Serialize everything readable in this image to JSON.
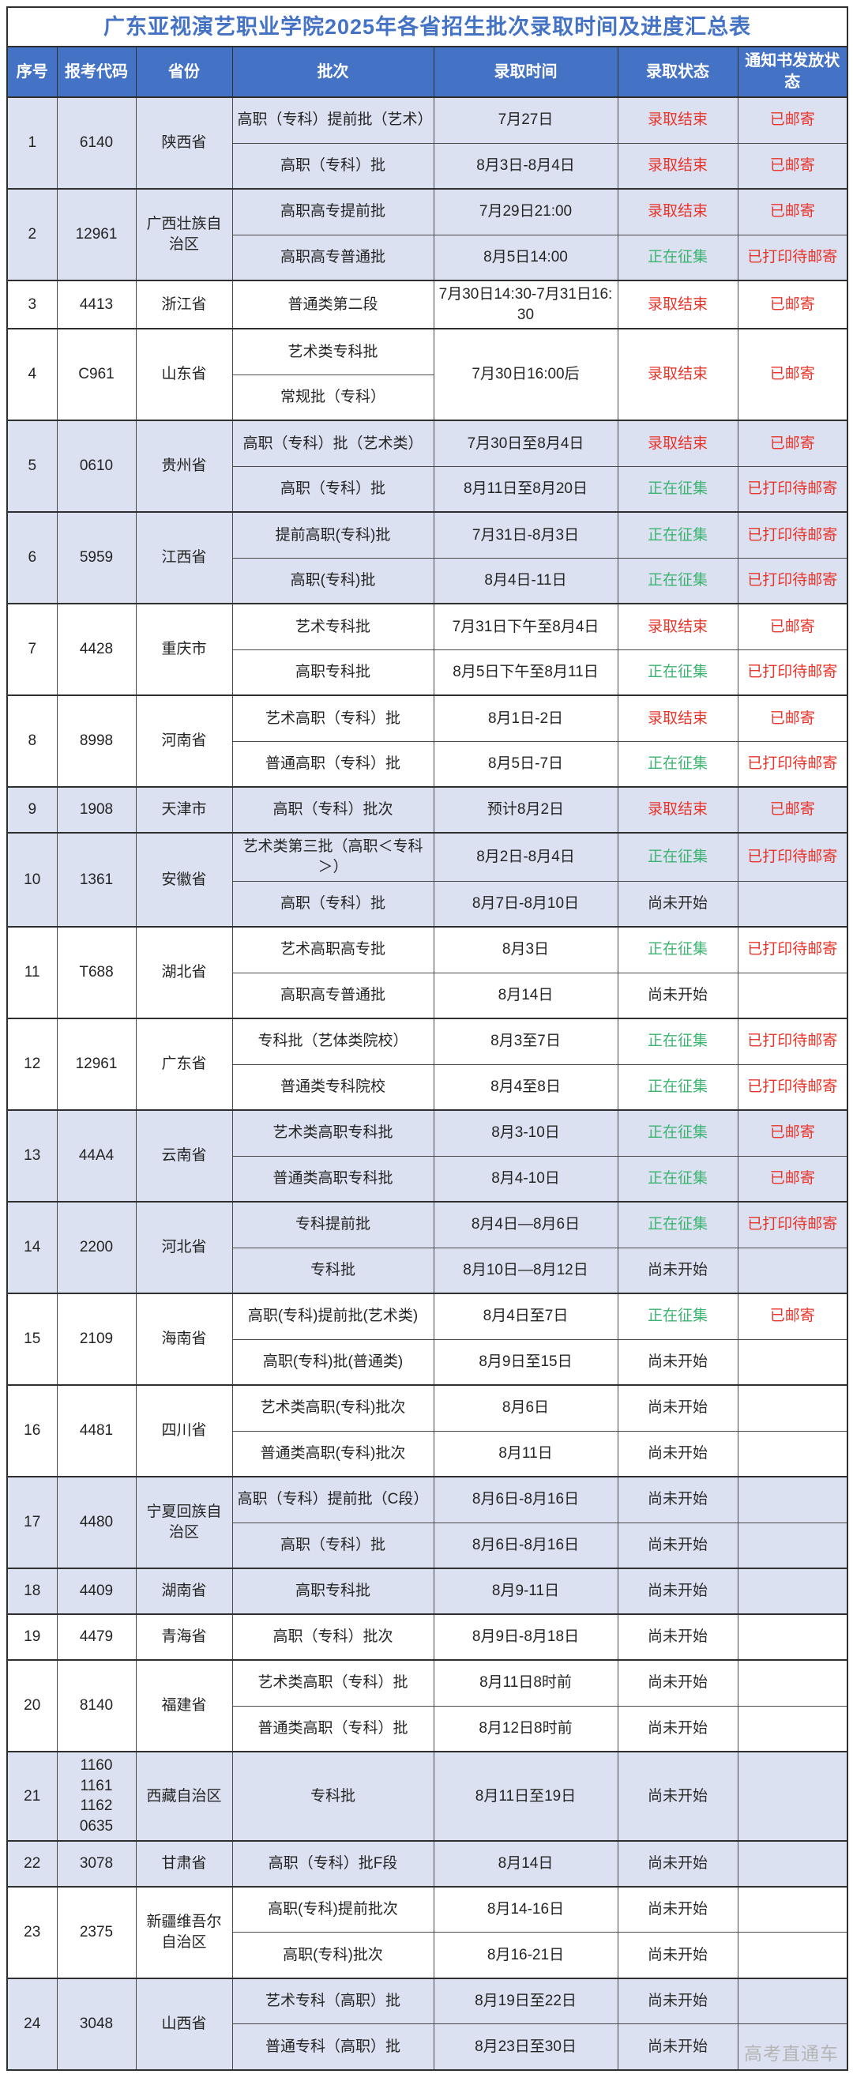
{
  "title": "广东亚视演艺职业学院2025年各省招生批次录取时间及进度汇总表",
  "watermark": "高考直通车",
  "columns": [
    "序号",
    "报考代码",
    "省份",
    "批次",
    "录取时间",
    "录取状态",
    "通知书发放状态"
  ],
  "colors": {
    "header_bg": "#4472c4",
    "header_text": "#ffffff",
    "title_text": "#4472c4",
    "shaded_row_bg": "#dbe1f1",
    "status_finished_red": "#e8352b",
    "status_collecting_green": "#3cb371",
    "status_notstarted_dark": "#2a2a2a",
    "border": "#2f2f2f"
  },
  "status_legend": {
    "finished": "录取结束",
    "collecting": "正在征集",
    "not_started": "尚未开始",
    "mailed": "已邮寄",
    "printed_waiting": "已打印待邮寄"
  },
  "groups": [
    {
      "no": "1",
      "code": [
        "6140"
      ],
      "province": "陕西省",
      "shaded": true,
      "batches": [
        {
          "batch": "高职（专科）提前批（艺术）",
          "time": "7月27日",
          "status": "录取结束",
          "status_color": "red",
          "notice": "已邮寄",
          "notice_color": "red"
        },
        {
          "batch": "高职（专科）批",
          "time": "8月3日-8月4日",
          "status": "录取结束",
          "status_color": "red",
          "notice": "已邮寄",
          "notice_color": "red"
        }
      ]
    },
    {
      "no": "2",
      "code": [
        "12961"
      ],
      "province": "广西壮族自治区",
      "shaded": true,
      "batches": [
        {
          "batch": "高职高专提前批",
          "time": "7月29日21:00",
          "status": "录取结束",
          "status_color": "red",
          "notice": "已邮寄",
          "notice_color": "red"
        },
        {
          "batch": "高职高专普通批",
          "time": "8月5日14:00",
          "status": "正在征集",
          "status_color": "green",
          "notice": "已打印待邮寄",
          "notice_color": "red"
        }
      ]
    },
    {
      "no": "3",
      "code": [
        "4413"
      ],
      "province": "浙江省",
      "shaded": false,
      "batches": [
        {
          "batch": "普通类第二段",
          "time": "7月30日14:30-7月31日16:30",
          "status": "录取结束",
          "status_color": "red",
          "notice": "已邮寄",
          "notice_color": "red"
        }
      ]
    },
    {
      "no": "4",
      "code": [
        "C961"
      ],
      "province": "山东省",
      "shaded": false,
      "merged": {
        "time": "7月30日16:00后",
        "status": "录取结束",
        "status_color": "red",
        "notice": "已邮寄",
        "notice_color": "red"
      },
      "batches": [
        {
          "batch": "艺术类专科批"
        },
        {
          "batch": "常规批（专科）"
        }
      ]
    },
    {
      "no": "5",
      "code": [
        "0610"
      ],
      "province": "贵州省",
      "shaded": true,
      "batches": [
        {
          "batch": "高职（专科）批（艺术类）",
          "time": "7月30日至8月4日",
          "status": "录取结束",
          "status_color": "red",
          "notice": "已邮寄",
          "notice_color": "red"
        },
        {
          "batch": "高职（专科）批",
          "time": "8月11日至8月20日",
          "status": "正在征集",
          "status_color": "green",
          "notice": "已打印待邮寄",
          "notice_color": "red"
        }
      ]
    },
    {
      "no": "6",
      "code": [
        "5959"
      ],
      "province": "江西省",
      "shaded": true,
      "batches": [
        {
          "batch": "提前高职(专科)批",
          "time": "7月31日-8月3日",
          "status": "正在征集",
          "status_color": "green",
          "notice": "已打印待邮寄",
          "notice_color": "red"
        },
        {
          "batch": "高职(专科)批",
          "time": "8月4日-11日",
          "status": "正在征集",
          "status_color": "green",
          "notice": "已打印待邮寄",
          "notice_color": "red"
        }
      ]
    },
    {
      "no": "7",
      "code": [
        "4428"
      ],
      "province": "重庆市",
      "shaded": false,
      "batches": [
        {
          "batch": "艺术专科批",
          "time": "7月31日下午至8月4日",
          "status": "录取结束",
          "status_color": "red",
          "notice": "已邮寄",
          "notice_color": "red"
        },
        {
          "batch": "高职专科批",
          "time": "8月5日下午至8月11日",
          "status": "正在征集",
          "status_color": "green",
          "notice": "已打印待邮寄",
          "notice_color": "red"
        }
      ]
    },
    {
      "no": "8",
      "code": [
        "8998"
      ],
      "province": "河南省",
      "shaded": false,
      "batches": [
        {
          "batch": "艺术高职（专科）批",
          "time": "8月1日-2日",
          "status": "录取结束",
          "status_color": "red",
          "notice": "已邮寄",
          "notice_color": "red"
        },
        {
          "batch": "普通高职（专科）批",
          "time": "8月5日-7日",
          "status": "正在征集",
          "status_color": "green",
          "notice": "已打印待邮寄",
          "notice_color": "red"
        }
      ]
    },
    {
      "no": "9",
      "code": [
        "1908"
      ],
      "province": "天津市",
      "shaded": true,
      "batches": [
        {
          "batch": "高职（专科）批次",
          "time": "预计8月2日",
          "status": "录取结束",
          "status_color": "red",
          "notice": "已邮寄",
          "notice_color": "red"
        }
      ]
    },
    {
      "no": "10",
      "code": [
        "1361"
      ],
      "province": "安徽省",
      "shaded": true,
      "batches": [
        {
          "batch": "艺术类第三批（高职＜专科＞）",
          "time": "8月2日-8月4日",
          "status": "正在征集",
          "status_color": "green",
          "notice": "已打印待邮寄",
          "notice_color": "red"
        },
        {
          "batch": "高职（专科）批",
          "time": "8月7日-8月10日",
          "status": "尚未开始",
          "status_color": "dark",
          "notice": "",
          "notice_color": ""
        }
      ]
    },
    {
      "no": "11",
      "code": [
        "T688"
      ],
      "province": "湖北省",
      "shaded": false,
      "batches": [
        {
          "batch": "艺术高职高专批",
          "time": "8月3日",
          "status": "正在征集",
          "status_color": "green",
          "notice": "已打印待邮寄",
          "notice_color": "red"
        },
        {
          "batch": "高职高专普通批",
          "time": "8月14日",
          "status": "尚未开始",
          "status_color": "dark",
          "notice": "",
          "notice_color": ""
        }
      ]
    },
    {
      "no": "12",
      "code": [
        "12961"
      ],
      "province": "广东省",
      "shaded": false,
      "batches": [
        {
          "batch": "专科批（艺体类院校）",
          "time": "8月3至7日",
          "status": "正在征集",
          "status_color": "green",
          "notice": "已打印待邮寄",
          "notice_color": "red"
        },
        {
          "batch": "普通类专科院校",
          "time": "8月4至8日",
          "status": "正在征集",
          "status_color": "green",
          "notice": "已打印待邮寄",
          "notice_color": "red"
        }
      ]
    },
    {
      "no": "13",
      "code": [
        "44A4"
      ],
      "province": "云南省",
      "shaded": true,
      "batches": [
        {
          "batch": "艺术类高职专科批",
          "time": "8月3-10日",
          "status": "正在征集",
          "status_color": "green",
          "notice": "已邮寄",
          "notice_color": "red"
        },
        {
          "batch": "普通类高职专科批",
          "time": "8月4-10日",
          "status": "正在征集",
          "status_color": "green",
          "notice": "已邮寄",
          "notice_color": "red"
        }
      ]
    },
    {
      "no": "14",
      "code": [
        "2200"
      ],
      "province": "河北省",
      "shaded": true,
      "batches": [
        {
          "batch": "专科提前批",
          "time": "8月4日—8月6日",
          "status": "正在征集",
          "status_color": "green",
          "notice": "已打印待邮寄",
          "notice_color": "red"
        },
        {
          "batch": "专科批",
          "time": "8月10日—8月12日",
          "status": "尚未开始",
          "status_color": "dark",
          "notice": "",
          "notice_color": ""
        }
      ]
    },
    {
      "no": "15",
      "code": [
        "2109"
      ],
      "province": "海南省",
      "shaded": false,
      "batches": [
        {
          "batch": "高职(专科)提前批(艺术类)",
          "time": "8月4日至7日",
          "status": "正在征集",
          "status_color": "green",
          "notice": "已邮寄",
          "notice_color": "red"
        },
        {
          "batch": "高职(专科)批(普通类)",
          "time": "8月9日至15日",
          "status": "尚未开始",
          "status_color": "dark",
          "notice": "",
          "notice_color": ""
        }
      ]
    },
    {
      "no": "16",
      "code": [
        "4481"
      ],
      "province": "四川省",
      "shaded": false,
      "batches": [
        {
          "batch": "艺术类高职(专科)批次",
          "time": "8月6日",
          "status": "尚未开始",
          "status_color": "dark",
          "notice": "",
          "notice_color": ""
        },
        {
          "batch": "普通类高职(专科)批次",
          "time": "8月11日",
          "status": "尚未开始",
          "status_color": "dark",
          "notice": "",
          "notice_color": ""
        }
      ]
    },
    {
      "no": "17",
      "code": [
        "4480"
      ],
      "province": "宁夏回族自治区",
      "shaded": true,
      "batches": [
        {
          "batch": "高职（专科）提前批（C段）",
          "time": "8月6日-8月16日",
          "status": "尚未开始",
          "status_color": "dark",
          "notice": "",
          "notice_color": ""
        },
        {
          "batch": "高职（专科）批",
          "time": "8月6日-8月16日",
          "status": "尚未开始",
          "status_color": "dark",
          "notice": "",
          "notice_color": ""
        }
      ]
    },
    {
      "no": "18",
      "code": [
        "4409"
      ],
      "province": "湖南省",
      "shaded": true,
      "batches": [
        {
          "batch": "高职专科批",
          "time": "8月9-11日",
          "status": "尚未开始",
          "status_color": "dark",
          "notice": "",
          "notice_color": ""
        }
      ]
    },
    {
      "no": "19",
      "code": [
        "4479"
      ],
      "province": "青海省",
      "shaded": false,
      "batches": [
        {
          "batch": "高职（专科）批次",
          "time": "8月9日-8月18日",
          "status": "尚未开始",
          "status_color": "dark",
          "notice": "",
          "notice_color": ""
        }
      ]
    },
    {
      "no": "20",
      "code": [
        "8140"
      ],
      "province": "福建省",
      "shaded": false,
      "batches": [
        {
          "batch": "艺术类高职（专科）批",
          "time": "8月11日8时前",
          "status": "尚未开始",
          "status_color": "dark",
          "notice": "",
          "notice_color": ""
        },
        {
          "batch": "普通类高职（专科）批",
          "time": "8月12日8时前",
          "status": "尚未开始",
          "status_color": "dark",
          "notice": "",
          "notice_color": ""
        }
      ]
    },
    {
      "no": "21",
      "code": [
        "1160",
        "1161",
        "1162",
        "0635"
      ],
      "province": "西藏自治区",
      "shaded": true,
      "batches": [
        {
          "batch": "专科批",
          "time": "8月11日至19日",
          "status": "尚未开始",
          "status_color": "dark",
          "notice": "",
          "notice_color": ""
        }
      ]
    },
    {
      "no": "22",
      "code": [
        "3078"
      ],
      "province": "甘肃省",
      "shaded": true,
      "batches": [
        {
          "batch": "高职（专科）批F段",
          "time": "8月14日",
          "status": "尚未开始",
          "status_color": "dark",
          "notice": "",
          "notice_color": ""
        }
      ]
    },
    {
      "no": "23",
      "code": [
        "2375"
      ],
      "province": "新疆维吾尔自治区",
      "shaded": false,
      "batches": [
        {
          "batch": "高职(专科)提前批次",
          "time": "8月14-16日",
          "status": "尚未开始",
          "status_color": "dark",
          "notice": "",
          "notice_color": ""
        },
        {
          "batch": "高职(专科)批次",
          "time": "8月16-21日",
          "status": "尚未开始",
          "status_color": "dark",
          "notice": "",
          "notice_color": ""
        }
      ]
    },
    {
      "no": "24",
      "code": [
        "3048"
      ],
      "province": "山西省",
      "shaded": true,
      "batches": [
        {
          "batch": "艺术专科（高职）批",
          "time": "8月19日至22日",
          "status": "尚未开始",
          "status_color": "dark",
          "notice": "",
          "notice_color": ""
        },
        {
          "batch": "普通专科（高职）批",
          "time": "8月23日至30日",
          "status": "尚未开始",
          "status_color": "dark",
          "notice": "",
          "notice_color": ""
        }
      ]
    }
  ]
}
